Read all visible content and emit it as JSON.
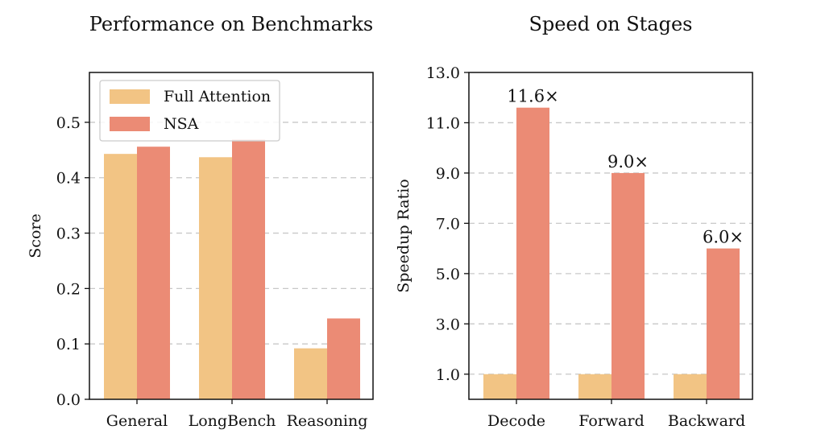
{
  "chart_data": [
    {
      "type": "bar",
      "title": "Performance on Benchmarks",
      "xlabel": "",
      "ylabel": "Score",
      "categories": [
        "General",
        "LongBench",
        "Reasoning"
      ],
      "series": [
        {
          "name": "Full Attention",
          "values": [
            0.443,
            0.437,
            0.092
          ]
        },
        {
          "name": "NSA",
          "values": [
            0.456,
            0.469,
            0.146
          ]
        }
      ],
      "ylim": [
        0.0,
        0.59
      ],
      "yticks": [
        0.0,
        0.1,
        0.2,
        0.3,
        0.4,
        0.5
      ],
      "ytick_labels": [
        "0.0",
        "0.1",
        "0.2",
        "0.3",
        "0.4",
        "0.5"
      ],
      "grid": true,
      "legend": "top-left"
    },
    {
      "type": "bar",
      "title": "Speed on Stages",
      "xlabel": "",
      "ylabel": "Speedup Ratio",
      "categories": [
        "Decode",
        "Forward",
        "Backward"
      ],
      "series": [
        {
          "name": "Full Attention",
          "values": [
            1.0,
            1.0,
            1.0
          ]
        },
        {
          "name": "NSA",
          "values": [
            11.6,
            9.0,
            6.0
          ]
        }
      ],
      "data_labels": [
        "11.6×",
        "9.0×",
        "6.0×"
      ],
      "ylim": [
        0.0,
        13.0
      ],
      "yticks": [
        1.0,
        3.0,
        5.0,
        7.0,
        9.0,
        11.0,
        13.0
      ],
      "ytick_labels": [
        "1.0",
        "3.0",
        "5.0",
        "7.0",
        "9.0",
        "11.0",
        "13.0"
      ],
      "grid": true,
      "legend": "none"
    }
  ],
  "colors": {
    "full_attention": "#f2c484",
    "nsa": "#eb8b75"
  }
}
